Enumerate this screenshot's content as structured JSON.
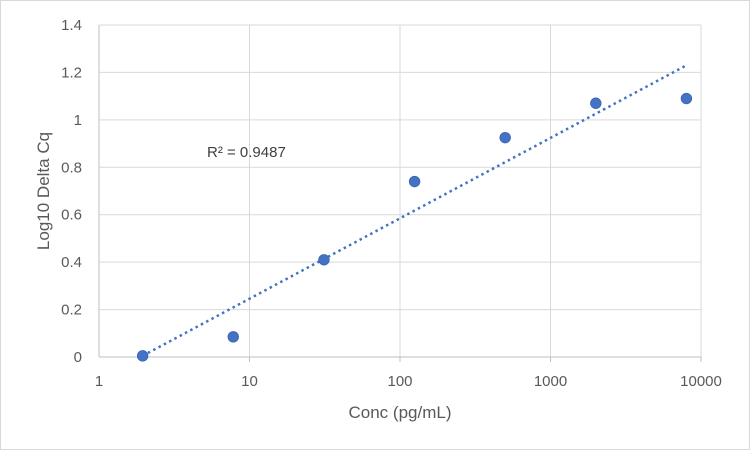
{
  "chart_data": {
    "type": "scatter",
    "title": "",
    "xlabel": "Conc (pg/mL)",
    "ylabel": "Log10 Delta Cq",
    "x_scale": "log",
    "xlim": [
      1,
      10000
    ],
    "ylim": [
      0,
      1.4
    ],
    "x_ticks": [
      1,
      10,
      100,
      1000,
      10000
    ],
    "x_tick_labels": [
      "1",
      "10",
      "100",
      "1000",
      "10000"
    ],
    "y_ticks": [
      0,
      0.2,
      0.4,
      0.6,
      0.8,
      1,
      1.2,
      1.4
    ],
    "y_tick_labels": [
      "0",
      "0.2",
      "0.4",
      "0.6",
      "0.8",
      "1",
      "1.2",
      "1.4"
    ],
    "grid": true,
    "legend": "none",
    "series": [
      {
        "x": [
          1.95,
          7.8,
          31.25,
          125,
          500,
          2000,
          8000
        ],
        "y": [
          0.005,
          0.085,
          0.41,
          0.74,
          0.925,
          1.07,
          1.09
        ],
        "color": "#4472c4"
      }
    ],
    "trendline": {
      "type": "linear-in-log-x",
      "x": [
        1.95,
        8000
      ],
      "y": [
        0.005,
        1.23
      ],
      "color": "#4472c4",
      "style": "dotted",
      "r_squared_label": "R² = 0.9487"
    }
  }
}
